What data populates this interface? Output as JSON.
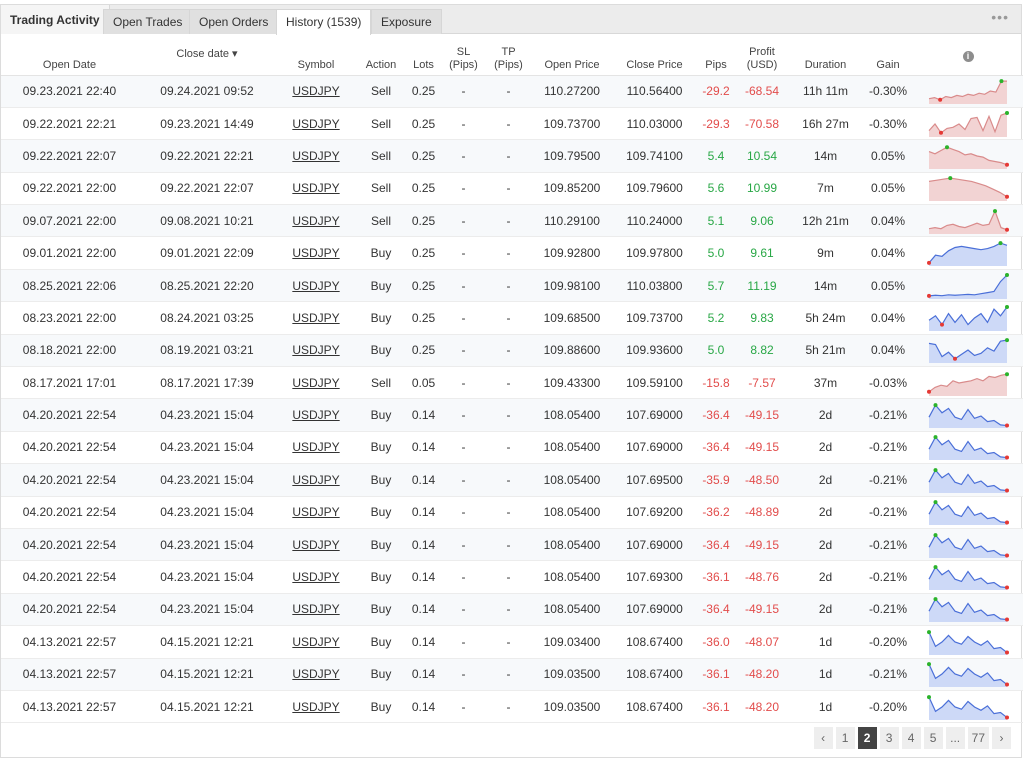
{
  "tabs": [
    {
      "label": "Trading Activity"
    },
    {
      "label": "Open Trades"
    },
    {
      "label": "Open Orders"
    },
    {
      "label": "History (1539)"
    },
    {
      "label": "Exposure"
    }
  ],
  "more_label": "•••",
  "columns": {
    "open_date": "Open Date",
    "close_date": "Close date ▾",
    "symbol": "Symbol",
    "action": "Action",
    "lots": "Lots",
    "sl_1": "SL",
    "sl_2": "(Pips)",
    "tp_1": "TP",
    "tp_2": "(Pips)",
    "open_price": "Open Price",
    "close_price": "Close Price",
    "pips": "Pips",
    "profit_1": "Profit",
    "profit_2": "(USD)",
    "duration": "Duration",
    "gain": "Gain",
    "info": "i"
  },
  "rows": [
    {
      "open": "09.23.2021 22:40",
      "close": "09.24.2021 09:52",
      "symbol": "USDJPY",
      "action": "Sell",
      "lots": "0.25",
      "sl": "-",
      "tp": "-",
      "open_price": "110.27200",
      "close_price": "110.56400",
      "pips": "-29.2",
      "profit": "-68.54",
      "duration": "11h 11m",
      "gain": "-0.30%",
      "positive": false,
      "spark": [
        0.15,
        0.2,
        0.1,
        0.25,
        0.2,
        0.3,
        0.25,
        0.35,
        0.3,
        0.4,
        0.35,
        0.5,
        0.45,
        0.95,
        0.95
      ]
    },
    {
      "open": "09.22.2021 22:21",
      "close": "09.23.2021 14:49",
      "symbol": "USDJPY",
      "action": "Sell",
      "lots": "0.25",
      "sl": "-",
      "tp": "-",
      "open_price": "109.73700",
      "close_price": "110.03000",
      "pips": "-29.3",
      "profit": "-70.58",
      "duration": "16h 27m",
      "gain": "-0.30%",
      "positive": false,
      "spark": [
        0.2,
        0.5,
        0.1,
        0.3,
        0.35,
        0.5,
        0.25,
        0.75,
        0.8,
        0.2,
        0.85,
        0.15,
        0.9,
        1.0
      ]
    },
    {
      "open": "09.22.2021 22:07",
      "close": "09.22.2021 22:21",
      "symbol": "USDJPY",
      "action": "Sell",
      "lots": "0.25",
      "sl": "-",
      "tp": "-",
      "open_price": "109.79500",
      "close_price": "109.74100",
      "pips": "5.4",
      "profit": "10.54",
      "duration": "14m",
      "gain": "0.05%",
      "positive": true,
      "spark": [
        0.7,
        0.6,
        0.75,
        0.9,
        0.8,
        0.7,
        0.55,
        0.6,
        0.5,
        0.45,
        0.3,
        0.25,
        0.2,
        0.1
      ]
    },
    {
      "open": "09.22.2021 22:00",
      "close": "09.22.2021 22:07",
      "symbol": "USDJPY",
      "action": "Sell",
      "lots": "0.25",
      "sl": "-",
      "tp": "-",
      "open_price": "109.85200",
      "close_price": "109.79600",
      "pips": "5.6",
      "profit": "10.99",
      "duration": "7m",
      "gain": "0.05%",
      "positive": true,
      "spark": [
        0.8,
        0.85,
        0.9,
        0.95,
        0.9,
        0.85,
        0.8,
        0.7,
        0.6,
        0.45,
        0.3,
        0.1
      ]
    },
    {
      "open": "09.07.2021 22:00",
      "close": "09.08.2021 10:21",
      "symbol": "USDJPY",
      "action": "Sell",
      "lots": "0.25",
      "sl": "-",
      "tp": "-",
      "open_price": "110.29100",
      "close_price": "110.24000",
      "pips": "5.1",
      "profit": "9.06",
      "duration": "12h 21m",
      "gain": "0.04%",
      "positive": true,
      "spark": [
        0.15,
        0.2,
        0.15,
        0.3,
        0.35,
        0.25,
        0.2,
        0.3,
        0.4,
        0.3,
        0.35,
        0.95,
        0.2,
        0.1
      ]
    },
    {
      "open": "09.01.2021 22:00",
      "close": "09.01.2021 22:09",
      "symbol": "USDJPY",
      "action": "Buy",
      "lots": "0.25",
      "sl": "-",
      "tp": "-",
      "open_price": "109.92800",
      "close_price": "109.97800",
      "pips": "5.0",
      "profit": "9.61",
      "duration": "9m",
      "gain": "0.04%",
      "positive": true,
      "spark": [
        0.05,
        0.4,
        0.35,
        0.6,
        0.75,
        0.8,
        0.75,
        0.7,
        0.65,
        0.7,
        0.8,
        0.95,
        0.85
      ]
    },
    {
      "open": "08.25.2021 22:06",
      "close": "08.25.2021 22:20",
      "symbol": "USDJPY",
      "action": "Buy",
      "lots": "0.25",
      "sl": "-",
      "tp": "-",
      "open_price": "109.98100",
      "close_price": "110.03800",
      "pips": "5.7",
      "profit": "11.19",
      "duration": "14m",
      "gain": "0.05%",
      "positive": true,
      "spark": [
        0.05,
        0.08,
        0.06,
        0.1,
        0.08,
        0.1,
        0.12,
        0.1,
        0.15,
        0.2,
        0.25,
        0.7,
        1.0
      ]
    },
    {
      "open": "08.23.2021 22:00",
      "close": "08.24.2021 03:25",
      "symbol": "USDJPY",
      "action": "Buy",
      "lots": "0.25",
      "sl": "-",
      "tp": "-",
      "open_price": "109.68500",
      "close_price": "109.73700",
      "pips": "5.2",
      "profit": "9.83",
      "duration": "5h 24m",
      "gain": "0.04%",
      "positive": true,
      "spark": [
        0.4,
        0.6,
        0.2,
        0.7,
        0.3,
        0.65,
        0.2,
        0.5,
        0.7,
        0.3,
        0.9,
        0.6,
        1.0
      ]
    },
    {
      "open": "08.18.2021 22:00",
      "close": "08.19.2021 03:21",
      "symbol": "USDJPY",
      "action": "Buy",
      "lots": "0.25",
      "sl": "-",
      "tp": "-",
      "open_price": "109.88600",
      "close_price": "109.93600",
      "pips": "5.0",
      "profit": "8.82",
      "duration": "5h 21m",
      "gain": "0.04%",
      "positive": true,
      "spark": [
        0.8,
        0.75,
        0.2,
        0.4,
        0.1,
        0.3,
        0.5,
        0.25,
        0.35,
        0.6,
        0.45,
        0.9,
        0.95
      ]
    },
    {
      "open": "08.17.2021 17:01",
      "close": "08.17.2021 17:39",
      "symbol": "USDJPY",
      "action": "Sell",
      "lots": "0.05",
      "sl": "-",
      "tp": "-",
      "open_price": "109.43300",
      "close_price": "109.59100",
      "pips": "-15.8",
      "profit": "-7.57",
      "duration": "37m",
      "gain": "-0.03%",
      "positive": false,
      "spark": [
        0.1,
        0.3,
        0.4,
        0.35,
        0.6,
        0.5,
        0.55,
        0.6,
        0.7,
        0.6,
        0.8,
        0.75,
        0.85,
        0.9
      ]
    },
    {
      "open": "04.20.2021 22:54",
      "close": "04.23.2021 15:04",
      "symbol": "USDJPY",
      "action": "Buy",
      "lots": "0.14",
      "sl": "-",
      "tp": "-",
      "open_price": "108.05400",
      "close_price": "107.69000",
      "pips": "-36.4",
      "profit": "-49.15",
      "duration": "2d",
      "gain": "-0.21%",
      "positive": false,
      "spark": [
        0.4,
        0.95,
        0.6,
        0.8,
        0.4,
        0.3,
        0.75,
        0.35,
        0.45,
        0.2,
        0.25,
        0.05,
        0.02
      ]
    },
    {
      "open": "04.20.2021 22:54",
      "close": "04.23.2021 15:04",
      "symbol": "USDJPY",
      "action": "Buy",
      "lots": "0.14",
      "sl": "-",
      "tp": "-",
      "open_price": "108.05400",
      "close_price": "107.69000",
      "pips": "-36.4",
      "profit": "-49.15",
      "duration": "2d",
      "gain": "-0.21%",
      "positive": false,
      "spark": [
        0.4,
        0.95,
        0.6,
        0.8,
        0.4,
        0.3,
        0.75,
        0.35,
        0.45,
        0.2,
        0.25,
        0.05,
        0.02
      ]
    },
    {
      "open": "04.20.2021 22:54",
      "close": "04.23.2021 15:04",
      "symbol": "USDJPY",
      "action": "Buy",
      "lots": "0.14",
      "sl": "-",
      "tp": "-",
      "open_price": "108.05400",
      "close_price": "107.69500",
      "pips": "-35.9",
      "profit": "-48.50",
      "duration": "2d",
      "gain": "-0.21%",
      "positive": false,
      "spark": [
        0.4,
        0.95,
        0.6,
        0.8,
        0.4,
        0.3,
        0.75,
        0.35,
        0.45,
        0.2,
        0.25,
        0.05,
        0.02
      ]
    },
    {
      "open": "04.20.2021 22:54",
      "close": "04.23.2021 15:04",
      "symbol": "USDJPY",
      "action": "Buy",
      "lots": "0.14",
      "sl": "-",
      "tp": "-",
      "open_price": "108.05400",
      "close_price": "107.69200",
      "pips": "-36.2",
      "profit": "-48.89",
      "duration": "2d",
      "gain": "-0.21%",
      "positive": false,
      "spark": [
        0.4,
        0.95,
        0.6,
        0.8,
        0.4,
        0.3,
        0.75,
        0.35,
        0.45,
        0.2,
        0.25,
        0.05,
        0.02
      ]
    },
    {
      "open": "04.20.2021 22:54",
      "close": "04.23.2021 15:04",
      "symbol": "USDJPY",
      "action": "Buy",
      "lots": "0.14",
      "sl": "-",
      "tp": "-",
      "open_price": "108.05400",
      "close_price": "107.69000",
      "pips": "-36.4",
      "profit": "-49.15",
      "duration": "2d",
      "gain": "-0.21%",
      "positive": false,
      "spark": [
        0.4,
        0.95,
        0.6,
        0.8,
        0.4,
        0.3,
        0.75,
        0.35,
        0.45,
        0.2,
        0.25,
        0.05,
        0.02
      ]
    },
    {
      "open": "04.20.2021 22:54",
      "close": "04.23.2021 15:04",
      "symbol": "USDJPY",
      "action": "Buy",
      "lots": "0.14",
      "sl": "-",
      "tp": "-",
      "open_price": "108.05400",
      "close_price": "107.69300",
      "pips": "-36.1",
      "profit": "-48.76",
      "duration": "2d",
      "gain": "-0.21%",
      "positive": false,
      "spark": [
        0.4,
        0.95,
        0.6,
        0.8,
        0.4,
        0.3,
        0.75,
        0.35,
        0.45,
        0.2,
        0.25,
        0.05,
        0.02
      ]
    },
    {
      "open": "04.20.2021 22:54",
      "close": "04.23.2021 15:04",
      "symbol": "USDJPY",
      "action": "Buy",
      "lots": "0.14",
      "sl": "-",
      "tp": "-",
      "open_price": "108.05400",
      "close_price": "107.69000",
      "pips": "-36.4",
      "profit": "-49.15",
      "duration": "2d",
      "gain": "-0.21%",
      "positive": false,
      "spark": [
        0.4,
        0.95,
        0.6,
        0.8,
        0.4,
        0.3,
        0.75,
        0.35,
        0.45,
        0.2,
        0.25,
        0.05,
        0.02
      ]
    },
    {
      "open": "04.13.2021 22:57",
      "close": "04.15.2021 12:21",
      "symbol": "USDJPY",
      "action": "Buy",
      "lots": "0.14",
      "sl": "-",
      "tp": "-",
      "open_price": "109.03400",
      "close_price": "108.67400",
      "pips": "-36.0",
      "profit": "-48.07",
      "duration": "1d",
      "gain": "-0.20%",
      "positive": false,
      "spark": [
        0.95,
        0.3,
        0.5,
        0.8,
        0.5,
        0.4,
        0.75,
        0.5,
        0.35,
        0.55,
        0.2,
        0.25,
        0.02
      ]
    },
    {
      "open": "04.13.2021 22:57",
      "close": "04.15.2021 12:21",
      "symbol": "USDJPY",
      "action": "Buy",
      "lots": "0.14",
      "sl": "-",
      "tp": "-",
      "open_price": "109.03500",
      "close_price": "108.67400",
      "pips": "-36.1",
      "profit": "-48.20",
      "duration": "1d",
      "gain": "-0.21%",
      "positive": false,
      "spark": [
        0.95,
        0.3,
        0.5,
        0.8,
        0.5,
        0.4,
        0.75,
        0.5,
        0.35,
        0.55,
        0.2,
        0.25,
        0.02
      ]
    },
    {
      "open": "04.13.2021 22:57",
      "close": "04.15.2021 12:21",
      "symbol": "USDJPY",
      "action": "Buy",
      "lots": "0.14",
      "sl": "-",
      "tp": "-",
      "open_price": "109.03500",
      "close_price": "108.67400",
      "pips": "-36.1",
      "profit": "-48.20",
      "duration": "1d",
      "gain": "-0.20%",
      "positive": false,
      "spark": [
        0.95,
        0.3,
        0.5,
        0.8,
        0.5,
        0.4,
        0.75,
        0.5,
        0.35,
        0.55,
        0.2,
        0.25,
        0.02
      ]
    }
  ],
  "pagination": {
    "prev": "‹",
    "pages": [
      "1",
      "2",
      "3",
      "4",
      "5",
      "...",
      "77"
    ],
    "current": "2",
    "next": "›"
  },
  "colors": {
    "sell_fill": "#f2d3d3",
    "sell_line": "#d98b8b",
    "buy_fill": "#cdd9f7",
    "buy_line": "#4a6fd8",
    "high_dot": "#2bb32b",
    "low_dot": "#e53935",
    "neg_text": "#e24c4b",
    "pos_text": "#28a745"
  }
}
